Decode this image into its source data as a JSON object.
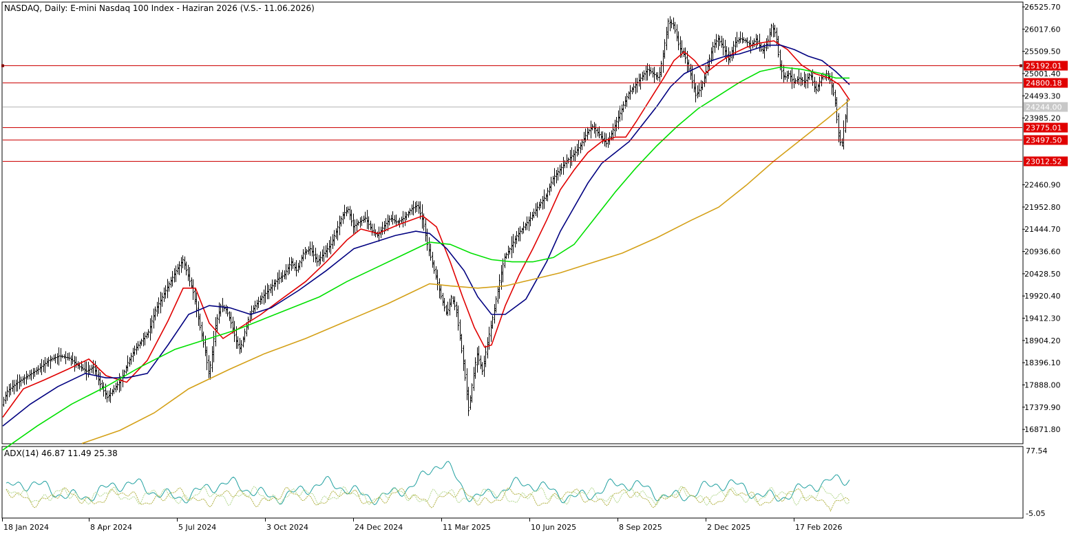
{
  "chart_title": "NASDAQ, Daily:  E-mini Nasdaq 100 Index -  Haziran 2026 (V.S.- 11.06.2026)",
  "indicator_label": "ADX(14) 46.87 11.49 25.38",
  "colors": {
    "background": "#ffffff",
    "bars": "#000000",
    "level_line": "#cc0000",
    "level_label_bg": "#e00000",
    "current_price_line": "#b4b4b4",
    "current_price_label_bg": "#c8c8c8",
    "ma_fast": "#e00000",
    "ma_mid": "#000080",
    "ma_slow": "#00e000",
    "ma_long": "#d4a017",
    "adx_main": "#20a0a0",
    "adx_plus": "#b4d890",
    "adx_minus": "#b0b040"
  },
  "chart_data": {
    "type": "candlestick",
    "timeframe": "Daily",
    "symbol": "NASDAQ",
    "price_axis": {
      "ticks": [
        "26525.70",
        "26017.60",
        "25509.50",
        "25001.40",
        "24493.30",
        "23985.20",
        "22460.90",
        "21952.80",
        "21444.70",
        "20936.60",
        "20428.50",
        "19920.40",
        "19412.30",
        "18904.20",
        "18396.10",
        "17888.00",
        "17379.90",
        "16871.80"
      ],
      "range": [
        16560,
        26620
      ]
    },
    "time_axis": {
      "ticks": [
        "18 Jan 2024",
        "8 Apr 2024",
        "5 Jul 2024",
        "3 Oct 2024",
        "24 Dec 2024",
        "11 Mar 2025",
        "10 Jun 2025",
        "8 Sep 2025",
        "2 Dec 2025",
        "17 Feb 2026"
      ]
    },
    "horizontal_levels": [
      {
        "label": "25192.01",
        "value": 25192.01
      },
      {
        "label": "24800.18",
        "value": 24800.18
      },
      {
        "label": "23775.01",
        "value": 23775.01
      },
      {
        "label": "23497.50",
        "value": 23497.5
      },
      {
        "label": "23012.52",
        "value": 23012.52
      }
    ],
    "current_price": {
      "label": "24244.00",
      "value": 24244.0
    },
    "price_path": [
      [
        0,
        17350
      ],
      [
        10,
        17750
      ],
      [
        25,
        17950
      ],
      [
        40,
        18100
      ],
      [
        55,
        18250
      ],
      [
        70,
        18450
      ],
      [
        85,
        18550
      ],
      [
        100,
        18500
      ],
      [
        115,
        18300
      ],
      [
        125,
        18200
      ],
      [
        135,
        18300
      ],
      [
        145,
        17900
      ],
      [
        155,
        17600
      ],
      [
        165,
        17800
      ],
      [
        175,
        18000
      ],
      [
        185,
        18400
      ],
      [
        195,
        18700
      ],
      [
        205,
        18900
      ],
      [
        215,
        19100
      ],
      [
        225,
        19600
      ],
      [
        235,
        19900
      ],
      [
        245,
        20200
      ],
      [
        255,
        20500
      ],
      [
        265,
        20750
      ],
      [
        272,
        20400
      ],
      [
        280,
        20000
      ],
      [
        290,
        19200
      ],
      [
        298,
        18600
      ],
      [
        303,
        18100
      ],
      [
        308,
        18700
      ],
      [
        313,
        19300
      ],
      [
        320,
        19700
      ],
      [
        328,
        19600
      ],
      [
        335,
        19300
      ],
      [
        342,
        18900
      ],
      [
        348,
        18700
      ],
      [
        355,
        19100
      ],
      [
        362,
        19500
      ],
      [
        370,
        19700
      ],
      [
        380,
        19900
      ],
      [
        392,
        20100
      ],
      [
        402,
        20300
      ],
      [
        412,
        20400
      ],
      [
        422,
        20700
      ],
      [
        430,
        20500
      ],
      [
        440,
        20900
      ],
      [
        450,
        21000
      ],
      [
        460,
        20700
      ],
      [
        470,
        20900
      ],
      [
        480,
        21100
      ],
      [
        490,
        21500
      ],
      [
        498,
        21800
      ],
      [
        505,
        21900
      ],
      [
        512,
        21500
      ],
      [
        520,
        21600
      ],
      [
        530,
        21700
      ],
      [
        540,
        21400
      ],
      [
        548,
        21300
      ],
      [
        556,
        21500
      ],
      [
        566,
        21700
      ],
      [
        576,
        21600
      ],
      [
        586,
        21700
      ],
      [
        596,
        21900
      ],
      [
        606,
        22000
      ],
      [
        614,
        21600
      ],
      [
        620,
        21100
      ],
      [
        630,
        20500
      ],
      [
        640,
        19900
      ],
      [
        648,
        19500
      ],
      [
        655,
        19900
      ],
      [
        662,
        19600
      ],
      [
        668,
        18900
      ],
      [
        674,
        18200
      ],
      [
        680,
        17300
      ],
      [
        686,
        18000
      ],
      [
        692,
        18600
      ],
      [
        700,
        18200
      ],
      [
        708,
        18900
      ],
      [
        716,
        19500
      ],
      [
        724,
        20200
      ],
      [
        732,
        20800
      ],
      [
        740,
        21000
      ],
      [
        750,
        21300
      ],
      [
        760,
        21500
      ],
      [
        770,
        21700
      ],
      [
        780,
        21950
      ],
      [
        792,
        22200
      ],
      [
        802,
        22600
      ],
      [
        812,
        22800
      ],
      [
        822,
        23000
      ],
      [
        832,
        23150
      ],
      [
        842,
        23350
      ],
      [
        852,
        23650
      ],
      [
        860,
        23800
      ],
      [
        870,
        23600
      ],
      [
        880,
        23400
      ],
      [
        888,
        23650
      ],
      [
        896,
        23950
      ],
      [
        904,
        24250
      ],
      [
        912,
        24550
      ],
      [
        920,
        24700
      ],
      [
        930,
        24900
      ],
      [
        940,
        25100
      ],
      [
        948,
        25000
      ],
      [
        956,
        24900
      ],
      [
        962,
        25400
      ],
      [
        970,
        26200
      ],
      [
        978,
        26100
      ],
      [
        986,
        25600
      ],
      [
        994,
        25400
      ],
      [
        1002,
        25000
      ],
      [
        1010,
        24500
      ],
      [
        1018,
        24700
      ],
      [
        1026,
        25100
      ],
      [
        1034,
        25600
      ],
      [
        1042,
        25800
      ],
      [
        1050,
        25600
      ],
      [
        1058,
        25300
      ],
      [
        1066,
        25700
      ],
      [
        1074,
        25800
      ],
      [
        1082,
        25750
      ],
      [
        1090,
        25650
      ],
      [
        1098,
        25800
      ],
      [
        1106,
        25500
      ],
      [
        1114,
        25700
      ],
      [
        1120,
        26100
      ],
      [
        1126,
        25900
      ],
      [
        1132,
        25200
      ],
      [
        1138,
        24900
      ],
      [
        1145,
        25000
      ],
      [
        1152,
        24800
      ],
      [
        1160,
        24900
      ],
      [
        1168,
        24800
      ],
      [
        1176,
        25000
      ],
      [
        1184,
        24600
      ],
      [
        1192,
        24900
      ],
      [
        1200,
        25000
      ],
      [
        1206,
        24800
      ],
      [
        1212,
        24400
      ],
      [
        1218,
        23500
      ],
      [
        1222,
        23350
      ],
      [
        1226,
        23900
      ],
      [
        1230,
        24244
      ]
    ],
    "moving_averages": [
      {
        "id": "ma_fast",
        "points": [
          [
            0,
            17150
          ],
          [
            30,
            17800
          ],
          [
            60,
            18000
          ],
          [
            95,
            18250
          ],
          [
            125,
            18480
          ],
          [
            150,
            18100
          ],
          [
            180,
            17950
          ],
          [
            210,
            18450
          ],
          [
            240,
            19350
          ],
          [
            262,
            20100
          ],
          [
            280,
            20100
          ],
          [
            300,
            19300
          ],
          [
            320,
            18950
          ],
          [
            345,
            19200
          ],
          [
            375,
            19500
          ],
          [
            405,
            19850
          ],
          [
            440,
            20250
          ],
          [
            470,
            20700
          ],
          [
            500,
            21200
          ],
          [
            520,
            21450
          ],
          [
            545,
            21350
          ],
          [
            575,
            21550
          ],
          [
            610,
            21750
          ],
          [
            630,
            21500
          ],
          [
            650,
            20700
          ],
          [
            668,
            19900
          ],
          [
            685,
            19200
          ],
          [
            700,
            18750
          ],
          [
            710,
            18800
          ],
          [
            730,
            19700
          ],
          [
            750,
            20400
          ],
          [
            770,
            21000
          ],
          [
            790,
            21650
          ],
          [
            810,
            22350
          ],
          [
            830,
            22800
          ],
          [
            850,
            23200
          ],
          [
            870,
            23450
          ],
          [
            890,
            23550
          ],
          [
            905,
            23550
          ],
          [
            920,
            23900
          ],
          [
            940,
            24400
          ],
          [
            960,
            24900
          ],
          [
            975,
            25300
          ],
          [
            990,
            25500
          ],
          [
            1005,
            25300
          ],
          [
            1020,
            25000
          ],
          [
            1040,
            25250
          ],
          [
            1060,
            25450
          ],
          [
            1080,
            25600
          ],
          [
            1100,
            25700
          ],
          [
            1120,
            25750
          ],
          [
            1140,
            25550
          ],
          [
            1160,
            25200
          ],
          [
            1180,
            25000
          ],
          [
            1200,
            24900
          ],
          [
            1215,
            24750
          ],
          [
            1230,
            24400
          ]
        ]
      },
      {
        "id": "ma_mid",
        "points": [
          [
            0,
            16950
          ],
          [
            40,
            17450
          ],
          [
            80,
            17850
          ],
          [
            120,
            18150
          ],
          [
            150,
            18050
          ],
          [
            180,
            18050
          ],
          [
            210,
            18150
          ],
          [
            240,
            18800
          ],
          [
            270,
            19500
          ],
          [
            300,
            19700
          ],
          [
            330,
            19650
          ],
          [
            360,
            19500
          ],
          [
            390,
            19650
          ],
          [
            430,
            20050
          ],
          [
            470,
            20500
          ],
          [
            510,
            21000
          ],
          [
            540,
            21150
          ],
          [
            570,
            21300
          ],
          [
            600,
            21400
          ],
          [
            620,
            21350
          ],
          [
            645,
            21000
          ],
          [
            670,
            20500
          ],
          [
            690,
            19900
          ],
          [
            710,
            19500
          ],
          [
            730,
            19500
          ],
          [
            760,
            19850
          ],
          [
            790,
            20700
          ],
          [
            810,
            21400
          ],
          [
            830,
            21950
          ],
          [
            850,
            22500
          ],
          [
            870,
            22950
          ],
          [
            890,
            23200
          ],
          [
            910,
            23450
          ],
          [
            930,
            23850
          ],
          [
            950,
            24250
          ],
          [
            970,
            24700
          ],
          [
            990,
            25000
          ],
          [
            1010,
            25150
          ],
          [
            1030,
            25300
          ],
          [
            1050,
            25400
          ],
          [
            1070,
            25450
          ],
          [
            1090,
            25550
          ],
          [
            1110,
            25650
          ],
          [
            1130,
            25650
          ],
          [
            1150,
            25550
          ],
          [
            1170,
            25400
          ],
          [
            1190,
            25300
          ],
          [
            1210,
            25050
          ],
          [
            1230,
            24750
          ]
        ]
      },
      {
        "id": "ma_slow",
        "points": [
          [
            0,
            16400
          ],
          [
            50,
            16950
          ],
          [
            100,
            17450
          ],
          [
            150,
            17850
          ],
          [
            200,
            18300
          ],
          [
            250,
            18700
          ],
          [
            300,
            18950
          ],
          [
            340,
            19150
          ],
          [
            380,
            19400
          ],
          [
            420,
            19650
          ],
          [
            460,
            19900
          ],
          [
            500,
            20250
          ],
          [
            540,
            20550
          ],
          [
            580,
            20850
          ],
          [
            620,
            21150
          ],
          [
            650,
            21100
          ],
          [
            680,
            20900
          ],
          [
            710,
            20750
          ],
          [
            740,
            20700
          ],
          [
            770,
            20700
          ],
          [
            800,
            20800
          ],
          [
            830,
            21100
          ],
          [
            860,
            21700
          ],
          [
            890,
            22300
          ],
          [
            920,
            22850
          ],
          [
            950,
            23350
          ],
          [
            980,
            23800
          ],
          [
            1010,
            24200
          ],
          [
            1040,
            24500
          ],
          [
            1070,
            24800
          ],
          [
            1100,
            25050
          ],
          [
            1130,
            25150
          ],
          [
            1160,
            25100
          ],
          [
            1190,
            25000
          ],
          [
            1210,
            24900
          ],
          [
            1230,
            24900
          ]
        ]
      },
      {
        "id": "ma_long",
        "points": [
          [
            115,
            16550
          ],
          [
            170,
            16850
          ],
          [
            220,
            17250
          ],
          [
            270,
            17800
          ],
          [
            330,
            18250
          ],
          [
            380,
            18600
          ],
          [
            440,
            18950
          ],
          [
            500,
            19350
          ],
          [
            560,
            19750
          ],
          [
            600,
            20050
          ],
          [
            620,
            20200
          ],
          [
            650,
            20150
          ],
          [
            690,
            20100
          ],
          [
            730,
            20150
          ],
          [
            770,
            20300
          ],
          [
            810,
            20450
          ],
          [
            850,
            20650
          ],
          [
            900,
            20900
          ],
          [
            950,
            21250
          ],
          [
            1000,
            21650
          ],
          [
            1040,
            21950
          ],
          [
            1080,
            22450
          ],
          [
            1120,
            23000
          ],
          [
            1160,
            23500
          ],
          [
            1200,
            24000
          ],
          [
            1230,
            24400
          ]
        ]
      }
    ],
    "adx": {
      "range": [
        -5.05,
        77.54
      ],
      "ticks": [
        "77.54",
        "-5.05"
      ],
      "last_values": {
        "adx": 46.87,
        "plus_di": 11.49,
        "minus_di": 25.38
      }
    }
  }
}
